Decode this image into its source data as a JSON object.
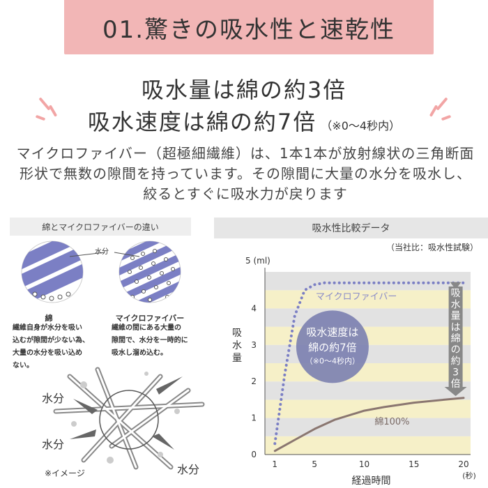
{
  "banner": {
    "title": "01.驚きの吸水性と速乾性"
  },
  "headline": {
    "line1": "吸水量は綿の約3倍",
    "line2": "吸水速度は綿の約7倍",
    "line2_note": "（※0〜4秒内）"
  },
  "description": "マイクロファイバー（超極細繊維）は、1本1本が放射線状の三角断面形状で無数の隙間を持っています。その隙間に大量の水分を吸水し、絞るとすぐに吸水力が戻ります",
  "left_panel": {
    "header": "綿とマイクロファイバーの違い",
    "water_label": "水分",
    "cotton": {
      "title": "綿",
      "lines": [
        "繊維自身が水分を吸い",
        "込むが隙間が少ない為、",
        "大量の水分を吸い込め",
        "ない。"
      ]
    },
    "microfiber": {
      "title": "マイクロファイバー",
      "lines": [
        "繊維の間にある大量の",
        "隙間で、水分を一時的に",
        "吸水し溜め込む。"
      ]
    },
    "cross_section_labels": [
      "水分",
      "水分",
      "水分"
    ],
    "image_note": "※イメージ"
  },
  "right_panel": {
    "header": "吸水性比較データ",
    "note": "（当社比：吸水性試験）"
  },
  "chart_data": {
    "type": "line",
    "xlabel": "経過時間",
    "x_unit": "(秒)",
    "ylabel": "吸水量",
    "y_unit": "5 (ml)",
    "xlim": [
      0,
      20
    ],
    "ylim": [
      0,
      5
    ],
    "x_ticks": [
      1,
      5,
      10,
      15,
      20
    ],
    "y_ticks": [
      0,
      1,
      2,
      3,
      4
    ],
    "series": [
      {
        "name": "マイクロファイバー",
        "style": "dotted",
        "color": "#7b7fc4",
        "x": [
          1,
          2,
          3,
          4,
          5,
          6,
          8,
          10,
          15,
          20
        ],
        "y": [
          0.3,
          2.2,
          3.8,
          4.5,
          4.65,
          4.7,
          4.7,
          4.7,
          4.7,
          4.7
        ]
      },
      {
        "name": "綿100%",
        "style": "solid",
        "color": "#8a7670",
        "x": [
          1,
          3,
          5,
          7,
          10,
          12,
          15,
          18,
          20
        ],
        "y": [
          0.1,
          0.4,
          0.7,
          0.95,
          1.2,
          1.3,
          1.42,
          1.5,
          1.55
        ]
      }
    ],
    "annotations": {
      "speed_line1": "吸水速度は",
      "speed_line2": "綿の約7倍",
      "speed_note": "（※0〜4秒内）",
      "amount_vertical": [
        "吸",
        "水",
        "量",
        "は",
        "綿",
        "の",
        "約",
        "3",
        "倍"
      ]
    },
    "colors": {
      "band_gray": "#e2e2e2",
      "band_yellow": "#f6f0c8",
      "circle": "#7b7fb0",
      "arrow": "#888888"
    }
  }
}
